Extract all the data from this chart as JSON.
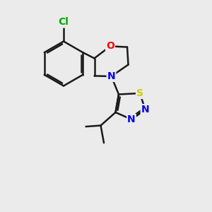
{
  "background_color": "#ebebeb",
  "bond_color": "#1a1a1a",
  "atom_colors": {
    "Cl": "#00aa00",
    "O": "#ff0000",
    "N": "#0000ee",
    "S": "#cccc00",
    "C": "#1a1a1a"
  },
  "lw": 1.8,
  "fs": 10
}
